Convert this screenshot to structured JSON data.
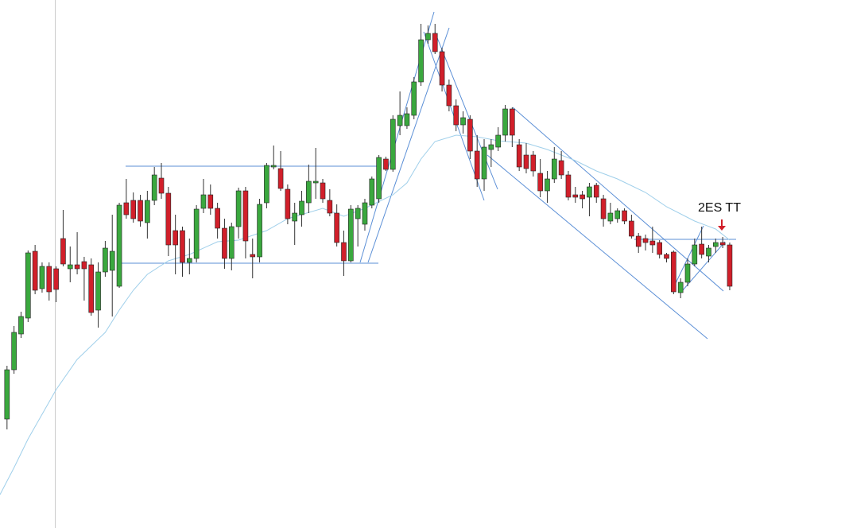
{
  "chart_data": {
    "type": "candlestick",
    "annotation": "2ES TT",
    "up_color": "#3aa83e",
    "down_color": "#d11f2a",
    "wick_color": "#333333",
    "ma_color": "#9fcfea",
    "xlim": [
      -1,
      120
    ],
    "ylim": [
      0,
      664
    ],
    "open": [
      137,
      199,
      244,
      264,
      348,
      301,
      329,
      326,
      364,
      326,
      331,
      335,
      331,
      274,
      322,
      324,
      304,
      409,
      412,
      412,
      384,
      412,
      440,
      421,
      374,
      374,
      334,
      339,
      402,
      419,
      402,
      377,
      339,
      379,
      424,
      344,
      341,
      409,
      454,
      452,
      426,
      386,
      394,
      409,
      434,
      434,
      412,
      396,
      359,
      336,
      389,
      382,
      406,
      414,
      464,
      451,
      506,
      506,
      519,
      561,
      614,
      622,
      599,
      557,
      531,
      507,
      514,
      474,
      439,
      476,
      479,
      494,
      527,
      482,
      469,
      469,
      446,
      424,
      439,
      462,
      444,
      419,
      419,
      416,
      431,
      414,
      386,
      389,
      399,
      386,
      367,
      364,
      361,
      359,
      344,
      347,
      296,
      309,
      332,
      357,
      342,
      354,
      359,
      356
    ],
    "high": [
      204,
      254,
      272,
      349,
      356,
      334,
      334,
      329,
      400,
      354,
      372,
      341,
      339,
      334,
      361,
      394,
      409,
      439,
      422,
      419,
      424,
      454,
      459,
      429,
      394,
      379,
      364,
      406,
      439,
      432,
      409,
      389,
      384,
      428,
      429,
      364,
      414,
      459,
      481,
      474,
      432,
      409,
      424,
      457,
      478,
      439,
      426,
      407,
      374,
      406,
      406,
      414,
      442,
      469,
      467,
      519,
      549,
      529,
      567,
      634,
      632,
      634,
      604,
      564,
      539,
      524,
      519,
      494,
      489,
      489,
      504,
      532,
      529,
      489,
      484,
      474,
      464,
      449,
      479,
      474,
      449,
      429,
      424,
      434,
      434,
      419,
      409,
      402,
      402,
      394,
      371,
      369,
      379,
      362,
      346,
      349,
      314,
      339,
      364,
      379,
      356,
      364,
      366,
      359
    ],
    "low": [
      124,
      194,
      239,
      259,
      294,
      296,
      286,
      284,
      329,
      309,
      319,
      286,
      267,
      252,
      316,
      266,
      302,
      389,
      384,
      379,
      364,
      406,
      414,
      342,
      319,
      316,
      319,
      334,
      396,
      394,
      364,
      326,
      324,
      364,
      339,
      314,
      334,
      402,
      451,
      424,
      382,
      356,
      379,
      396,
      414,
      409,
      392,
      354,
      317,
      334,
      354,
      374,
      402,
      409,
      449,
      448,
      494,
      502,
      514,
      556,
      609,
      596,
      549,
      524,
      499,
      496,
      464,
      429,
      424,
      454,
      474,
      486,
      479,
      449,
      446,
      442,
      416,
      409,
      434,
      439,
      412,
      409,
      402,
      392,
      409,
      379,
      382,
      384,
      382,
      364,
      346,
      349,
      346,
      339,
      334,
      294,
      289,
      304,
      329,
      339,
      334,
      346,
      352,
      299
    ],
    "close": [
      199,
      246,
      266,
      346,
      299,
      329,
      297,
      300,
      332,
      331,
      326,
      326,
      271,
      322,
      352,
      348,
      406,
      394,
      389,
      386,
      412,
      444,
      421,
      356,
      356,
      334,
      339,
      401,
      419,
      402,
      377,
      339,
      379,
      424,
      361,
      341,
      407,
      456,
      456,
      427,
      389,
      396,
      411,
      436,
      436,
      414,
      396,
      359,
      336,
      401,
      402,
      409,
      439,
      466,
      451,
      514,
      519,
      521,
      561,
      614,
      622,
      599,
      557,
      531,
      507,
      516,
      474,
      439,
      479,
      482,
      494,
      527,
      494,
      454,
      452,
      449,
      424,
      439,
      464,
      444,
      416,
      416,
      414,
      429,
      416,
      389,
      396,
      399,
      386,
      367,
      354,
      359,
      356,
      344,
      339,
      297,
      309,
      332,
      356,
      344,
      352,
      359,
      356,
      304
    ],
    "ma": {
      "x": [
        -1,
        1,
        3,
        7,
        10,
        14,
        16,
        18,
        20,
        23,
        26,
        30,
        33,
        37,
        40,
        45,
        48,
        51,
        55,
        57,
        59,
        61,
        64,
        67,
        70,
        74,
        77,
        81,
        84,
        87,
        91,
        94,
        98,
        101,
        103
      ],
      "values": [
        42,
        76,
        112,
        174,
        212,
        246,
        274,
        299,
        319,
        336,
        344,
        360,
        362,
        374,
        389,
        402,
        392,
        402,
        419,
        434,
        464,
        486,
        494,
        492,
        487,
        484,
        476,
        462,
        449,
        439,
        422,
        404,
        386,
        376,
        362
      ]
    }
  }
}
